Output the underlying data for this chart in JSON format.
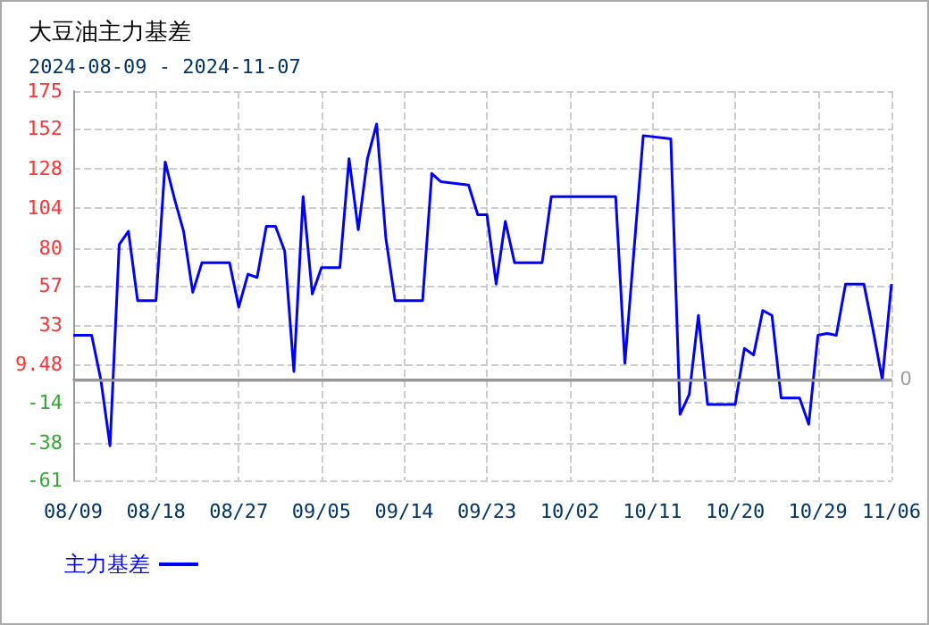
{
  "chart_data": {
    "type": "line",
    "title": "大豆油主力基差",
    "subtitle": "2024-08-09 - 2024-11-07",
    "x": [
      "2024-08-09",
      "2024-08-11",
      "2024-08-12",
      "2024-08-13",
      "2024-08-14",
      "2024-08-15",
      "2024-08-16",
      "2024-08-18",
      "2024-08-19",
      "2024-08-20",
      "2024-08-21",
      "2024-08-22",
      "2024-08-23",
      "2024-08-26",
      "2024-08-27",
      "2024-08-28",
      "2024-08-29",
      "2024-08-30",
      "2024-08-31",
      "2024-09-01",
      "2024-09-02",
      "2024-09-03",
      "2024-09-04",
      "2024-09-05",
      "2024-09-07",
      "2024-09-08",
      "2024-09-09",
      "2024-09-10",
      "2024-09-11",
      "2024-09-12",
      "2024-09-13",
      "2024-09-16",
      "2024-09-17",
      "2024-09-18",
      "2024-09-21",
      "2024-09-22",
      "2024-09-23",
      "2024-09-24",
      "2024-09-25",
      "2024-09-26",
      "2024-09-29",
      "2024-09-30",
      "2024-10-07",
      "2024-10-08",
      "2024-10-10",
      "2024-10-13",
      "2024-10-14",
      "2024-10-15",
      "2024-10-16",
      "2024-10-17",
      "2024-10-20",
      "2024-10-21",
      "2024-10-22",
      "2024-10-23",
      "2024-10-24",
      "2024-10-25",
      "2024-10-27",
      "2024-10-28",
      "2024-10-29",
      "2024-10-30",
      "2024-10-31",
      "2024-11-01",
      "2024-11-03",
      "2024-11-04",
      "2024-11-05",
      "2024-11-06"
    ],
    "series": [
      {
        "name": "主力基差",
        "color": "#0000ff",
        "values": [
          27,
          27,
          0,
          -40,
          82,
          90,
          48,
          48,
          132,
          110,
          90,
          53,
          71,
          71,
          44,
          64,
          62,
          93,
          93,
          78,
          5,
          111,
          52,
          68,
          68,
          134,
          91,
          134,
          155,
          86,
          48,
          48,
          125,
          120,
          118,
          100,
          100,
          58,
          96,
          71,
          71,
          111,
          111,
          10,
          148,
          146,
          -21,
          -9,
          39,
          -15,
          -15,
          19,
          15,
          42,
          39,
          -11,
          -11,
          -27,
          27,
          28,
          27,
          58,
          58,
          30,
          0,
          58
        ]
      }
    ],
    "xlim": [
      "2024-08-09",
      "2024-11-06"
    ],
    "xticks": [
      {
        "value": "2024-08-09",
        "label": "08/09"
      },
      {
        "value": "2024-08-18",
        "label": "08/18"
      },
      {
        "value": "2024-08-27",
        "label": "08/27"
      },
      {
        "value": "2024-09-05",
        "label": "09/05"
      },
      {
        "value": "2024-09-14",
        "label": "09/14"
      },
      {
        "value": "2024-09-23",
        "label": "09/23"
      },
      {
        "value": "2024-10-02",
        "label": "10/02"
      },
      {
        "value": "2024-10-11",
        "label": "10/11"
      },
      {
        "value": "2024-10-20",
        "label": "10/20"
      },
      {
        "value": "2024-10-29",
        "label": "10/29"
      },
      {
        "value": "2024-11-06",
        "label": "11/06"
      }
    ],
    "ylim": [
      -61,
      175
    ],
    "yticks": [
      -61,
      -38,
      -14,
      9.48,
      33,
      57,
      80,
      104,
      128,
      152,
      175
    ],
    "ref_lines": [
      {
        "axis": "y",
        "value": 0,
        "label": "0",
        "color": "#999999"
      }
    ],
    "grid": true,
    "legend": "bottom left",
    "marker": "none",
    "line_style": "solid"
  }
}
